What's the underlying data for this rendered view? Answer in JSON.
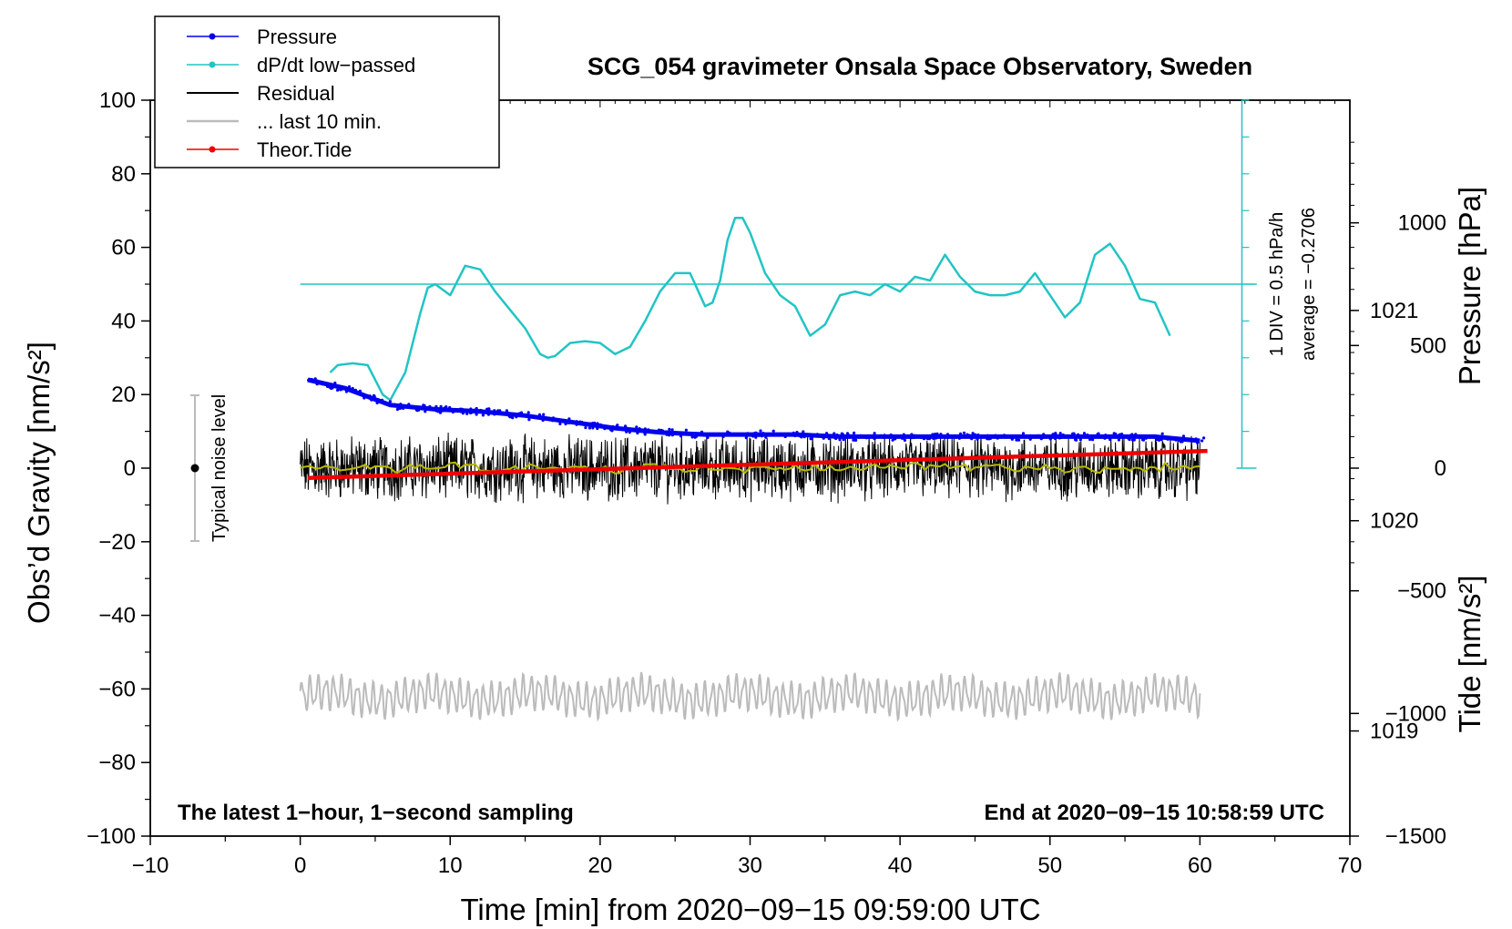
{
  "chart_data": {
    "type": "line",
    "title": "SCG_054 gravimeter Onsala Space Observatory, Sweden",
    "xlabel": "Time [min] from 2020−09−15 09:59:00 UTC",
    "ylabel": "Obs’d Gravity [nm/s²]",
    "y2label": "Pressure [hPa]",
    "y3label": "Tide [nm/s²]",
    "xlim": [
      -10,
      70
    ],
    "ylim": [
      -100,
      100
    ],
    "x_ticks": [
      "−10",
      "0",
      "10",
      "20",
      "30",
      "40",
      "50",
      "60",
      "70"
    ],
    "y_ticks": [
      "−100",
      "−80",
      "−60",
      "−40",
      "−20",
      "0",
      "20",
      "40",
      "60",
      "80",
      "100"
    ],
    "pressure_axis": {
      "range": [
        1018.5,
        1022
      ],
      "ticks": [
        "1019",
        "1020",
        "1021"
      ]
    },
    "tide_axis": {
      "range": [
        -1500,
        1500
      ],
      "ticks": [
        "−1500",
        "−1000",
        "−500",
        "0",
        "500",
        "1000"
      ]
    },
    "legend": [
      {
        "label": "Pressure",
        "color": "#0000ee",
        "marker": true
      },
      {
        "label": "dP/dt low−passed",
        "color": "#22c4c4",
        "marker": true
      },
      {
        "label": "Residual",
        "color": "#000000",
        "marker": false
      },
      {
        "label": "... last 10 min.",
        "color": "#bbbbbb",
        "marker": false
      },
      {
        "label": "Theor.Tide",
        "color": "#ee0000",
        "marker": true
      }
    ],
    "annotations": {
      "bottom_left": "The latest 1−hour, 1−second sampling",
      "bottom_right": "End at 2020−09−15 10:58:59 UTC",
      "noise_label": "Typical noise level",
      "div_label": "1 DIV = 0.5 hPa/h",
      "average_label": "average = −0.2706"
    },
    "series": [
      {
        "name": "Pressure",
        "axis": "pressure",
        "color": "#0000ee",
        "x": [
          0.5,
          3,
          6,
          9,
          12,
          15,
          18,
          21,
          24,
          27,
          30,
          33,
          36,
          39,
          42,
          45,
          48,
          51,
          54,
          57,
          60
        ],
        "values": [
          1020.67,
          1020.63,
          1020.55,
          1020.53,
          1020.52,
          1020.5,
          1020.47,
          1020.44,
          1020.42,
          1020.41,
          1020.41,
          1020.41,
          1020.4,
          1020.4,
          1020.4,
          1020.4,
          1020.4,
          1020.4,
          1020.4,
          1020.4,
          1020.38
        ]
      },
      {
        "name": "dP/dt low-passed",
        "axis": "gravity",
        "color": "#22c4c4",
        "x": [
          2,
          2.5,
          3.5,
          4.5,
          5.5,
          6,
          7,
          8,
          8.5,
          9,
          10,
          11,
          12,
          13,
          14,
          15,
          16,
          16.5,
          17,
          18,
          19,
          20,
          21,
          22,
          23,
          24,
          25,
          26,
          27,
          27.5,
          28,
          28.5,
          29,
          29.5,
          30,
          31,
          32,
          33,
          34,
          35,
          36,
          37,
          38,
          39,
          40,
          41,
          42,
          43,
          44,
          45,
          46,
          47,
          48,
          49,
          50,
          51,
          52,
          53,
          54,
          55,
          56,
          57,
          58
        ],
        "values": [
          26,
          28,
          28.5,
          28,
          20,
          18.5,
          26,
          42,
          49,
          50,
          47,
          55,
          54,
          48,
          43,
          38,
          31,
          30,
          30.5,
          34,
          34.5,
          34,
          31,
          33,
          40,
          48,
          53,
          53,
          44,
          45,
          51,
          62,
          68,
          68,
          64,
          53,
          47,
          44,
          36,
          39,
          47,
          48,
          47,
          50,
          48,
          52,
          51,
          58,
          52,
          48,
          47,
          47,
          48,
          53,
          47,
          41,
          45,
          58,
          61,
          55,
          46,
          45,
          36
        ]
      },
      {
        "name": "Residual",
        "axis": "gravity",
        "color": "#000000",
        "x": [
          0,
          60
        ],
        "values": [
          0,
          0
        ]
      },
      {
        "name": "... last 10 min.",
        "axis": "gravity",
        "color": "#bbbbbb",
        "x": [
          0,
          60
        ],
        "values": [
          -62,
          -62
        ]
      },
      {
        "name": "Theor.Tide",
        "axis": "tide",
        "color": "#ee0000",
        "x": [
          0.5,
          60.5
        ],
        "values": [
          -40,
          70
        ]
      }
    ]
  }
}
